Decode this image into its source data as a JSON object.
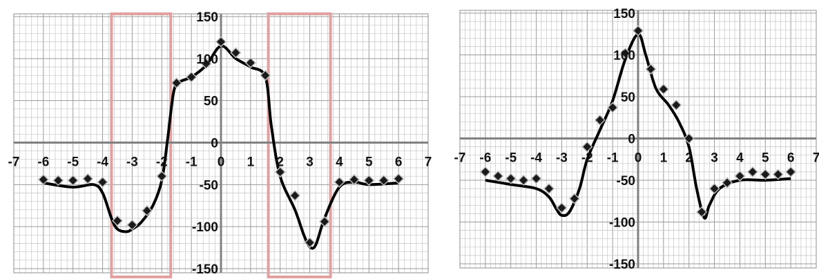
{
  "chart_data": [
    {
      "type": "scatter",
      "title": "",
      "xlabel": "",
      "ylabel": "",
      "xlim": [
        -7,
        7
      ],
      "ylim": [
        -150,
        150
      ],
      "x_ticks": [
        "-7",
        "-6",
        "-5",
        "-4",
        "-3",
        "-2",
        "-1",
        "0",
        "1",
        "2",
        "3",
        "4",
        "5",
        "6",
        "7"
      ],
      "y_ticks": [
        "150",
        "100",
        "50",
        "0",
        "-50",
        "-100",
        "-150"
      ],
      "grid": true,
      "legend": "none",
      "marker_color": "#1a1a1a",
      "line_color": "#000000",
      "highlight_color": "#e3a0a0",
      "highlight_ranges": [
        [
          -3.7,
          -1.7
        ],
        [
          1.6,
          3.7
        ]
      ],
      "series": [
        {
          "style": "markers",
          "x": [
            -6,
            -5.5,
            -5,
            -4.5,
            -4,
            -3.5,
            -3,
            -2.5,
            -2,
            -1.5,
            -1,
            -0.5,
            0,
            0.5,
            1,
            1.5,
            2,
            2.5,
            3,
            3.5,
            4,
            4.5,
            5,
            5.5,
            6
          ],
          "y": [
            -44,
            -45,
            -45,
            -43,
            -47,
            -93,
            -98,
            -81,
            -40,
            71,
            78,
            94,
            120,
            107,
            95,
            80,
            -35,
            -63,
            -119,
            -94,
            -47,
            -44,
            -45,
            -45,
            -43
          ]
        },
        {
          "style": "smooth-line",
          "x": [
            -6,
            -5,
            -4.3,
            -4,
            -3.7,
            -3.5,
            -3.2,
            -3,
            -2.7,
            -2.3,
            -2,
            -1.8,
            -1.6,
            -1.4,
            -1,
            -0.5,
            0,
            0.5,
            1,
            1.5,
            1.7,
            2,
            2.5,
            2.8,
            3,
            3.2,
            3.5,
            4,
            4.5,
            5,
            6
          ],
          "y": [
            -48,
            -53,
            -50,
            -60,
            -90,
            -103,
            -106,
            -103,
            -95,
            -75,
            -45,
            5,
            60,
            72,
            78,
            92,
            115,
            100,
            90,
            78,
            20,
            -40,
            -80,
            -110,
            -124,
            -122,
            -90,
            -53,
            -47,
            -50,
            -48
          ]
        }
      ]
    },
    {
      "type": "scatter",
      "title": "",
      "xlabel": "",
      "ylabel": "",
      "xlim": [
        -7,
        7
      ],
      "ylim": [
        -150,
        150
      ],
      "x_ticks": [
        "-7",
        "-6",
        "-5",
        "-4",
        "-3",
        "-2",
        "-1",
        "0",
        "1",
        "2",
        "3",
        "4",
        "5",
        "6",
        "7"
      ],
      "y_ticks": [
        "150",
        "100",
        "50",
        "0",
        "-50",
        "-100",
        "-150"
      ],
      "grid": true,
      "legend": "none",
      "marker_color": "#1a1a1a",
      "line_color": "#000000",
      "series": [
        {
          "style": "markers",
          "x": [
            -6,
            -5.5,
            -5,
            -4.5,
            -4,
            -3.5,
            -3,
            -2.5,
            -2,
            -1.5,
            -1,
            -0.5,
            0,
            0.5,
            1,
            1.5,
            2,
            2.5,
            3,
            3.5,
            4,
            4.5,
            5,
            5.5,
            6
          ],
          "y": [
            -40,
            -45,
            -48,
            -50,
            -48,
            -60,
            -83,
            -72,
            -10,
            22,
            37,
            102,
            129,
            83,
            59,
            40,
            0,
            -88,
            -60,
            -53,
            -45,
            -40,
            -43,
            -43,
            -40
          ]
        },
        {
          "style": "smooth-line",
          "x": [
            -6,
            -5,
            -4,
            -3.5,
            -3.2,
            -3,
            -2.7,
            -2.3,
            -2,
            -1.5,
            -1,
            -0.5,
            0,
            0.3,
            0.7,
            1.2,
            1.6,
            2,
            2.3,
            2.6,
            2.8,
            3.2,
            4,
            5,
            6
          ],
          "y": [
            -50,
            -55,
            -60,
            -70,
            -85,
            -92,
            -88,
            -60,
            -25,
            10,
            45,
            95,
            125,
            100,
            60,
            40,
            20,
            -10,
            -60,
            -95,
            -80,
            -60,
            -50,
            -50,
            -48
          ]
        }
      ]
    }
  ]
}
